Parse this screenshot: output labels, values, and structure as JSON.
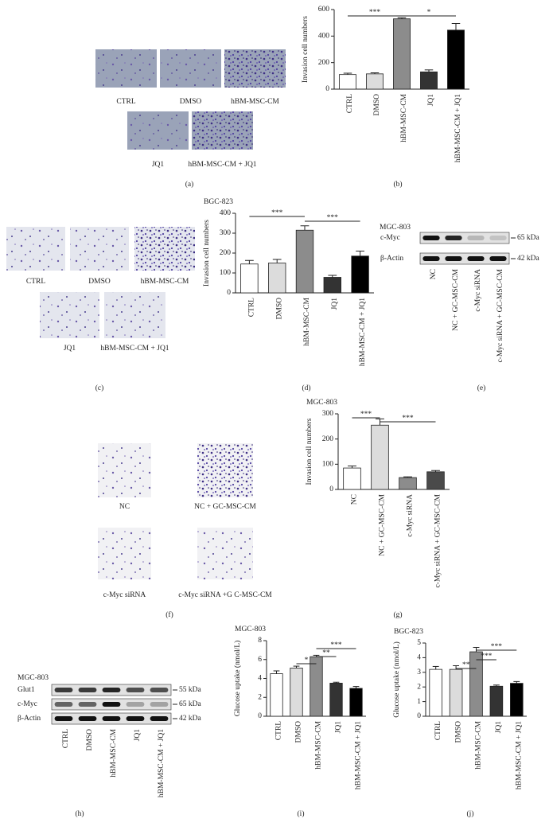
{
  "chart_data": [
    {
      "type": "bar",
      "panel": "(b)",
      "ylabel": "Invasion cell numbers",
      "categories": [
        "CTRL",
        "DMSO",
        "hBM-MSC-CM",
        "JQ1",
        "hBM-MSC-CM + JQ1"
      ],
      "values": [
        110,
        115,
        530,
        130,
        445
      ],
      "errors": [
        10,
        8,
        8,
        15,
        50
      ],
      "colors": [
        "#ffffff",
        "#dcdcdc",
        "#8c8c8c",
        "#333333",
        "#000000"
      ],
      "ylim": [
        0,
        600
      ],
      "yticks": [
        0,
        200,
        400,
        600
      ],
      "annotations": [
        "***",
        "*"
      ]
    },
    {
      "type": "bar",
      "panel": "(d)",
      "title": "BGC-823",
      "ylabel": "Invasion cell numbers",
      "categories": [
        "CTRL",
        "DMSO",
        "hBM-MSC-CM",
        "JQ1",
        "hBM-MSC-CM + JQ1"
      ],
      "values": [
        145,
        150,
        315,
        78,
        185
      ],
      "errors": [
        18,
        18,
        22,
        10,
        25
      ],
      "colors": [
        "#ffffff",
        "#dcdcdc",
        "#8c8c8c",
        "#333333",
        "#000000"
      ],
      "ylim": [
        0,
        400
      ],
      "yticks": [
        0,
        100,
        200,
        300,
        400
      ],
      "annotations": [
        "***",
        "***"
      ]
    },
    {
      "type": "bar",
      "panel": "(g)",
      "title": "MGC-803",
      "ylabel": "Invasion cell numbers",
      "categories": [
        "NC",
        "NC + GC-MSC-CM",
        "c-Myc siRNA",
        "c-Myc siRNA + GC-MSC-CM"
      ],
      "values": [
        85,
        255,
        47,
        70
      ],
      "errors": [
        8,
        25,
        3,
        5
      ],
      "colors": [
        "#ffffff",
        "#dcdcdc",
        "#8c8c8c",
        "#4a4a4a"
      ],
      "ylim": [
        0,
        300
      ],
      "yticks": [
        0,
        100,
        200,
        300
      ],
      "annotations": [
        "***",
        "***"
      ]
    },
    {
      "type": "bar",
      "panel": "(i)",
      "title": "MGC-803",
      "ylabel": "Glucose uptake (nmol/L)",
      "categories": [
        "CTRL",
        "DMSO",
        "hBM-MSC-CM",
        "JQ1",
        "hBM-MSC-CM + JQ1"
      ],
      "values": [
        4.5,
        5.1,
        6.3,
        3.5,
        2.95
      ],
      "errors": [
        0.3,
        0.2,
        0.15,
        0.1,
        0.2
      ],
      "colors": [
        "#ffffff",
        "#dcdcdc",
        "#8c8c8c",
        "#333333",
        "#000000"
      ],
      "ylim": [
        0,
        8
      ],
      "yticks": [
        0,
        2,
        4,
        6,
        8
      ],
      "annotations": [
        "*",
        "**",
        "***"
      ]
    },
    {
      "type": "bar",
      "panel": "(j)",
      "title": "BGC-823",
      "ylabel": "Glucose uptake (nmol/L)",
      "categories": [
        "CTRL",
        "DMSO",
        "hBM-MSC-CM",
        "JQ1",
        "hBM-MSC-CM + JQ1"
      ],
      "values": [
        3.2,
        3.2,
        4.4,
        2.05,
        2.25
      ],
      "errors": [
        0.2,
        0.25,
        0.3,
        0.08,
        0.12
      ],
      "colors": [
        "#ffffff",
        "#dcdcdc",
        "#8c8c8c",
        "#333333",
        "#000000"
      ],
      "ylim": [
        0,
        5
      ],
      "yticks": [
        0,
        1,
        2,
        3,
        4,
        5
      ],
      "annotations": [
        "**",
        "***",
        "***"
      ]
    }
  ],
  "image_panels": [
    {
      "panel": "(a)",
      "captions": [
        "CTRL",
        "DMSO",
        "hBM-MSC-CM",
        "JQ1",
        "hBM-MSC-CM + JQ1"
      ]
    },
    {
      "panel": "(c)",
      "captions": [
        "CTRL",
        "DMSO",
        "hBM-MSC-CM",
        "JQ1",
        "hBM-MSC-CM + JQ1"
      ]
    },
    {
      "panel": "(f)",
      "captions": [
        "NC",
        "NC + GC-MSC-CM",
        "c-Myc siRNA",
        "c-Myc siRNA +G C-MSC-CM"
      ]
    }
  ],
  "blots": [
    {
      "panel": "(e)",
      "title": "MGC-803",
      "rows": [
        "c-Myc",
        "β-Actin"
      ],
      "sizes": [
        "65 kDa",
        "42 kDa"
      ],
      "lanes": [
        "NC",
        "NC + GC-MSC-CM",
        "c-Myc siRNA",
        "c-Myc siRNA + GC-MSC-CM"
      ]
    },
    {
      "panel": "(h)",
      "title": "MGC-803",
      "rows": [
        "Glut1",
        "c-Myc",
        "β-Actin"
      ],
      "sizes": [
        "55 kDa",
        "65 kDa",
        "42 kDa"
      ],
      "lanes": [
        "CTRL",
        "DMSO",
        "hBM-MSC-CM",
        "JQ1",
        "hBM-MSC-CM + JQ1"
      ]
    }
  ]
}
